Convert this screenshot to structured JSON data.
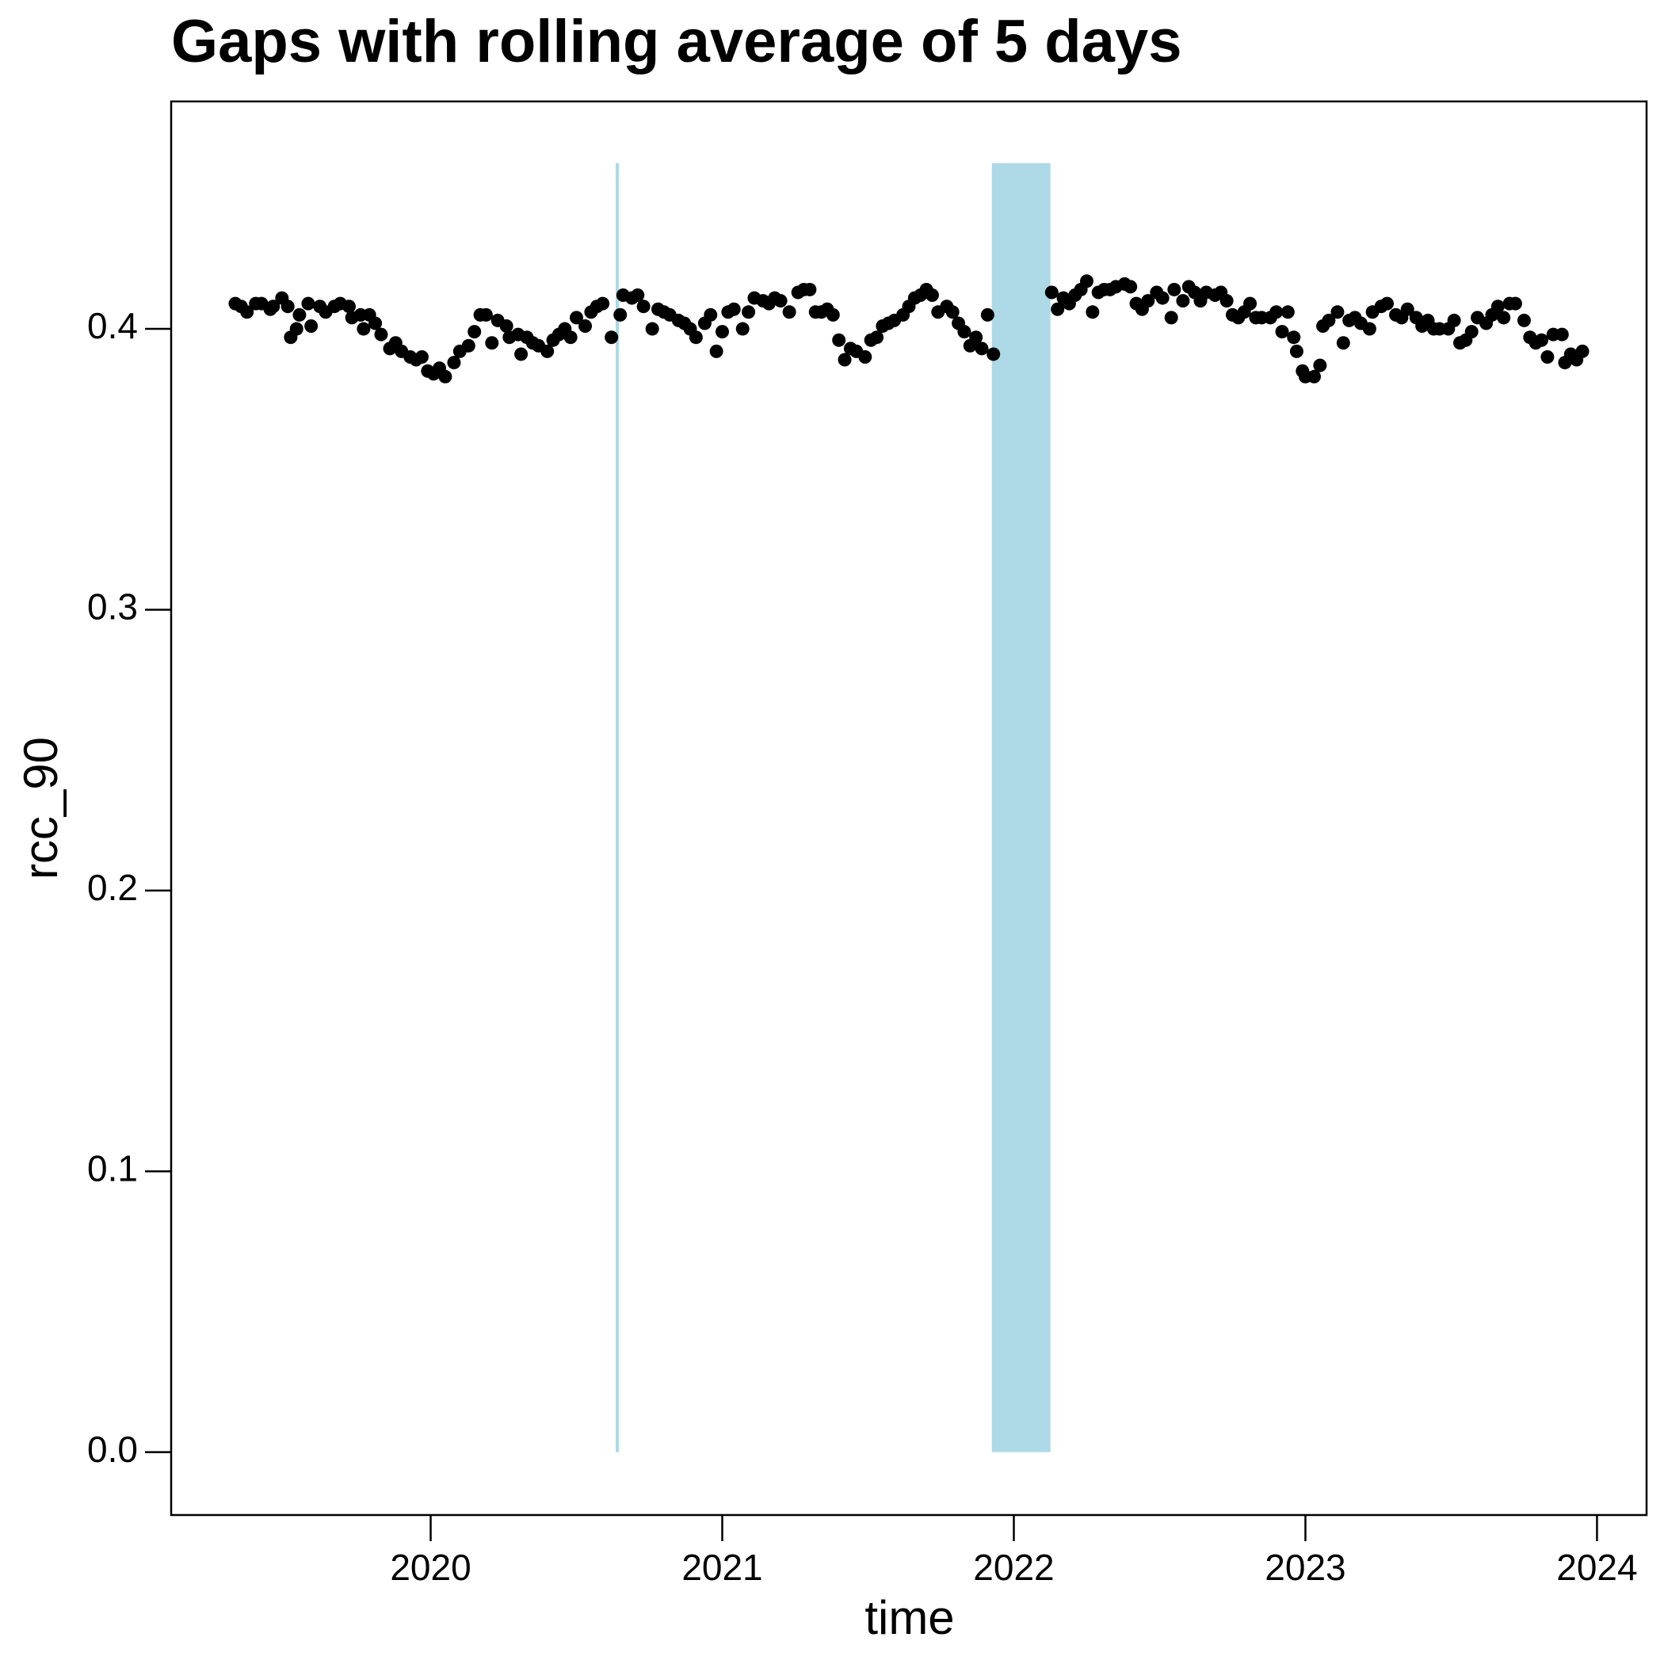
{
  "chart_data": {
    "type": "scatter",
    "title": "Gaps with rolling average of 5 days",
    "x_label": "time",
    "y_label": "rcc_90",
    "xlim": [
      2019.11,
      2024.17
    ],
    "ylim": [
      -0.0224,
      0.481
    ],
    "xticks": [
      2020,
      2021,
      2022,
      2023,
      2024
    ],
    "yticks": [
      {
        "value": 0,
        "label": "0.0"
      },
      0.1,
      0.2,
      0.3,
      0.4
    ],
    "color": "#000000",
    "gap_color": "#add8e6",
    "gaps": [
      [
        2020.64,
        2020.64
      ],
      [
        2021.93,
        2022.12
      ]
    ],
    "gap_height": 0.459,
    "x": [
      2019.33,
      2019.35,
      2019.37,
      2019.4,
      2019.42,
      2019.45,
      2019.46,
      2019.49,
      2019.51,
      2019.52,
      2019.54,
      2019.55,
      2019.58,
      2019.59,
      2019.62,
      2019.64,
      2019.67,
      2019.69,
      2019.72,
      2019.73,
      2019.76,
      2019.77,
      2019.79,
      2019.81,
      2019.83,
      2019.86,
      2019.88,
      2019.9,
      2019.93,
      2019.95,
      2019.97,
      2019.99,
      2020.01,
      2020.03,
      2020.05,
      2020.08,
      2020.1,
      2020.13,
      2020.15,
      2020.17,
      2020.19,
      2020.21,
      2020.23,
      2020.26,
      2020.27,
      2020.3,
      2020.31,
      2020.33,
      2020.35,
      2020.37,
      2020.4,
      2020.42,
      2020.44,
      2020.46,
      2020.48,
      2020.5,
      2020.53,
      2020.55,
      2020.57,
      2020.59,
      2020.62,
      2020.65,
      2020.66,
      2020.69,
      2020.71,
      2020.73,
      2020.76,
      2020.78,
      2020.8,
      2020.82,
      2020.85,
      2020.87,
      2020.89,
      2020.91,
      2020.94,
      2020.96,
      2020.98,
      2021.0,
      2021.02,
      2021.04,
      2021.07,
      2021.09,
      2021.11,
      2021.14,
      2021.16,
      2021.18,
      2021.2,
      2021.23,
      2021.26,
      2021.28,
      2021.3,
      2021.32,
      2021.34,
      2021.36,
      2021.38,
      2021.4,
      2021.42,
      2021.44,
      2021.46,
      2021.49,
      2021.51,
      2021.53,
      2021.55,
      2021.57,
      2021.59,
      2021.62,
      2021.64,
      2021.66,
      2021.68,
      2021.7,
      2021.72,
      2021.74,
      2021.77,
      2021.79,
      2021.81,
      2021.83,
      2021.85,
      2021.87,
      2021.89,
      2021.91,
      2021.93,
      2022.13,
      2022.15,
      2022.17,
      2022.19,
      2022.21,
      2022.23,
      2022.25,
      2022.27,
      2022.29,
      2022.31,
      2022.33,
      2022.35,
      2022.38,
      2022.4,
      2022.42,
      2022.44,
      2022.46,
      2022.49,
      2022.51,
      2022.54,
      2022.55,
      2022.58,
      2022.6,
      2022.62,
      2022.64,
      2022.66,
      2022.69,
      2022.71,
      2022.73,
      2022.75,
      2022.77,
      2022.79,
      2022.81,
      2022.83,
      2022.85,
      2022.88,
      2022.9,
      2022.92,
      2022.94,
      2022.96,
      2022.97,
      2022.99,
      2023.0,
      2023.03,
      2023.05,
      2023.06,
      2023.08,
      2023.11,
      2023.13,
      2023.15,
      2023.17,
      2023.19,
      2023.22,
      2023.23,
      2023.26,
      2023.28,
      2023.31,
      2023.33,
      2023.35,
      2023.38,
      2023.4,
      2023.42,
      2023.44,
      2023.46,
      2023.49,
      2023.51,
      2023.53,
      2023.55,
      2023.57,
      2023.59,
      2023.62,
      2023.64,
      2023.66,
      2023.68,
      2023.7,
      2023.72,
      2023.75,
      2023.77,
      2023.79,
      2023.81,
      2023.83,
      2023.85,
      2023.88,
      2023.89,
      2023.91,
      2023.93,
      2023.95
    ],
    "values": [
      0.409,
      0.408,
      0.406,
      0.409,
      0.409,
      0.407,
      0.408,
      0.411,
      0.408,
      0.397,
      0.4,
      0.405,
      0.409,
      0.401,
      0.408,
      0.406,
      0.408,
      0.409,
      0.408,
      0.404,
      0.405,
      0.4,
      0.405,
      0.402,
      0.398,
      0.393,
      0.395,
      0.392,
      0.39,
      0.389,
      0.39,
      0.385,
      0.384,
      0.386,
      0.383,
      0.388,
      0.392,
      0.394,
      0.399,
      0.405,
      0.405,
      0.395,
      0.403,
      0.401,
      0.397,
      0.398,
      0.391,
      0.397,
      0.395,
      0.394,
      0.392,
      0.396,
      0.398,
      0.4,
      0.397,
      0.404,
      0.401,
      0.406,
      0.408,
      0.409,
      0.397,
      0.405,
      0.412,
      0.411,
      0.412,
      0.408,
      0.4,
      0.407,
      0.406,
      0.405,
      0.403,
      0.402,
      0.4,
      0.397,
      0.402,
      0.405,
      0.392,
      0.399,
      0.406,
      0.407,
      0.4,
      0.406,
      0.411,
      0.41,
      0.409,
      0.411,
      0.41,
      0.406,
      0.413,
      0.414,
      0.414,
      0.406,
      0.406,
      0.407,
      0.405,
      0.396,
      0.389,
      0.393,
      0.392,
      0.39,
      0.396,
      0.397,
      0.401,
      0.402,
      0.403,
      0.405,
      0.408,
      0.411,
      0.412,
      0.414,
      0.412,
      0.406,
      0.408,
      0.406,
      0.402,
      0.399,
      0.394,
      0.397,
      0.393,
      0.405,
      0.391,
      0.413,
      0.407,
      0.411,
      0.409,
      0.412,
      0.414,
      0.417,
      0.406,
      0.413,
      0.414,
      0.414,
      0.415,
      0.416,
      0.415,
      0.409,
      0.407,
      0.41,
      0.413,
      0.411,
      0.404,
      0.414,
      0.41,
      0.415,
      0.413,
      0.41,
      0.413,
      0.412,
      0.413,
      0.41,
      0.405,
      0.404,
      0.406,
      0.409,
      0.404,
      0.404,
      0.404,
      0.406,
      0.399,
      0.406,
      0.397,
      0.392,
      0.385,
      0.383,
      0.383,
      0.387,
      0.401,
      0.403,
      0.406,
      0.395,
      0.403,
      0.404,
      0.402,
      0.4,
      0.406,
      0.408,
      0.409,
      0.405,
      0.404,
      0.407,
      0.404,
      0.401,
      0.403,
      0.4,
      0.4,
      0.4,
      0.403,
      0.395,
      0.396,
      0.399,
      0.404,
      0.402,
      0.405,
      0.408,
      0.404,
      0.409,
      0.409,
      0.403,
      0.397,
      0.395,
      0.396,
      0.39,
      0.398,
      0.398,
      0.388,
      0.391,
      0.389,
      0.392
    ]
  }
}
